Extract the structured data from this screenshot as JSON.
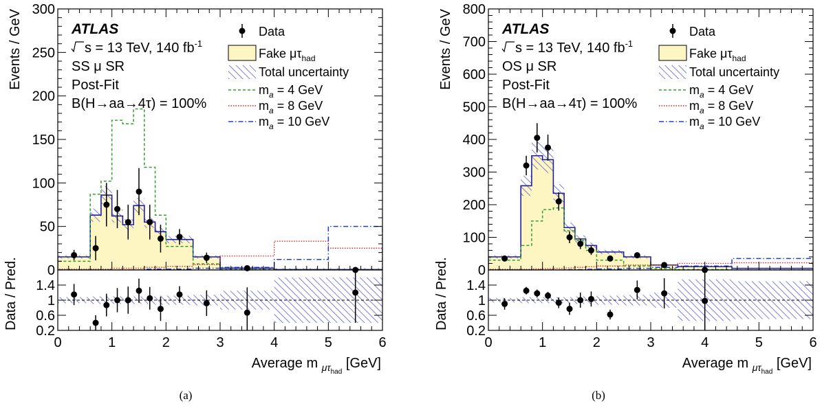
{
  "colors": {
    "fake_fill": "#fdf5c2",
    "fake_line": "#1f1f9e",
    "uncertainty": "#5b5fd6",
    "ma4": "#33a02c",
    "ma8": "#e31a1c",
    "ma10": "#1f3fdd",
    "data": "#000000"
  },
  "chart_data": [
    {
      "type": "bar",
      "caption": "(a)",
      "atlas": "ATLAS",
      "energy_pre": "s = 13 TeV, 140 fb",
      "energy_sup": "-1",
      "region": "SS μ SR",
      "fit": "Post-Fit",
      "branching": "B(H→aa→4τ) = 100%",
      "ylabel": "Events / GeV",
      "ratio_ylabel": "Data / Pred.",
      "xlabel": "Average m",
      "xlabel_sub": "μτ",
      "xlabel_subsub": "had",
      "xlabel_unit": "[GeV]",
      "xlim": [
        0,
        6
      ],
      "ylim": [
        0,
        300
      ],
      "yticks": [
        0,
        50,
        100,
        150,
        200,
        250,
        300
      ],
      "ratio_ylim": [
        0.2,
        1.8
      ],
      "ratio_yticks": [
        "0.2",
        "0.6",
        "1",
        "1.4"
      ],
      "xticks": [
        0,
        1,
        2,
        3,
        4,
        5,
        6
      ],
      "legend": {
        "data": "Data",
        "fake": "Fake μτ",
        "fake_sub": "had",
        "unc": "Total uncertainty",
        "ma4": "m",
        "ma4_sub": "a",
        "ma4_rest": "= 4 GeV",
        "ma8": "m",
        "ma8_sub": "a",
        "ma8_rest": "= 8 GeV",
        "ma10": "m",
        "ma10_sub": "a",
        "ma10_rest": "= 10 GeV"
      },
      "bin_edges": [
        0,
        0.6,
        0.8,
        1.0,
        1.2,
        1.4,
        1.6,
        1.8,
        2.0,
        2.5,
        3.0,
        4.0,
        5.0,
        6.0
      ],
      "fake": [
        15,
        63,
        86,
        62,
        52,
        74,
        55,
        44,
        35,
        15,
        2,
        0.5,
        0.5
      ],
      "ma4": [
        10,
        87,
        102,
        172,
        168,
        185,
        118,
        63,
        27,
        7,
        0.5,
        0,
        0
      ],
      "ma8": [
        1,
        1,
        1,
        2,
        2,
        2,
        3,
        3,
        4,
        6,
        16,
        33,
        25
      ],
      "ma10": [
        0,
        0,
        0,
        0,
        0,
        0,
        1,
        1,
        1,
        2,
        3,
        12,
        50
      ],
      "data": {
        "x": [
          0.3,
          0.7,
          0.9,
          1.1,
          1.3,
          1.5,
          1.7,
          1.9,
          2.25,
          2.75,
          3.5,
          5.5
        ],
        "y": [
          17,
          25,
          75,
          70,
          55,
          90,
          55,
          36,
          38,
          14,
          2,
          0
        ],
        "err": [
          6,
          14,
          25,
          22,
          20,
          27,
          20,
          16,
          9,
          6,
          2,
          2
        ]
      },
      "ratio": {
        "x": [
          0.3,
          0.7,
          0.9,
          1.1,
          1.3,
          1.5,
          1.7,
          1.9,
          2.25,
          2.75,
          3.5,
          5.5
        ],
        "y": [
          1.15,
          0.4,
          0.87,
          1.0,
          1.0,
          1.25,
          1.05,
          0.77,
          1.15,
          0.92,
          0.67,
          1.2
        ],
        "err": [
          0.28,
          0.2,
          0.3,
          0.32,
          0.36,
          0.32,
          0.3,
          0.32,
          0.22,
          0.34,
          0.67,
          0.8
        ]
      },
      "ratio_unc": [
        0.08,
        0.1,
        0.1,
        0.1,
        0.1,
        0.1,
        0.1,
        0.12,
        0.12,
        0.14,
        0.25,
        0.6,
        0.6
      ]
    },
    {
      "type": "bar",
      "caption": "(b)",
      "atlas": "ATLAS",
      "energy_pre": "s = 13 TeV, 140 fb",
      "energy_sup": "-1",
      "region": "OS μ SR",
      "fit": "Post-Fit",
      "branching": "B(H→aa→4τ) = 100%",
      "ylabel": "Events / GeV",
      "ratio_ylabel": "Data / Pred.",
      "xlabel": "Average m",
      "xlabel_sub": "μτ",
      "xlabel_subsub": "had",
      "xlabel_unit": "[GeV]",
      "xlim": [
        0,
        6
      ],
      "ylim": [
        0,
        800
      ],
      "yticks": [
        0,
        100,
        200,
        300,
        400,
        500,
        600,
        700,
        800
      ],
      "ratio_ylim": [
        0.2,
        1.8
      ],
      "ratio_yticks": [
        "0.2",
        "0.6",
        "1",
        "1.4"
      ],
      "xticks": [
        0,
        1,
        2,
        3,
        4,
        5,
        6
      ],
      "legend": {
        "data": "Data",
        "fake": "Fake μτ",
        "fake_sub": "had",
        "unc": "Total uncertainty",
        "ma4": "m",
        "ma4_sub": "a",
        "ma4_rest": "= 4 GeV",
        "ma8": "m",
        "ma8_sub": "a",
        "ma8_rest": "= 8 GeV",
        "ma10": "m",
        "ma10_sub": "a",
        "ma10_rest": "= 10 GeV"
      },
      "bin_edges": [
        0,
        0.6,
        0.8,
        1.0,
        1.2,
        1.4,
        1.6,
        1.8,
        2.0,
        2.5,
        3.0,
        3.5,
        4.5,
        6.0
      ],
      "fake": [
        40,
        258,
        350,
        338,
        235,
        130,
        95,
        75,
        55,
        40,
        15,
        10,
        5
      ],
      "ma4": [
        30,
        75,
        150,
        185,
        190,
        120,
        90,
        60,
        30,
        12,
        4,
        1,
        0
      ],
      "ma8": [
        2,
        2,
        3,
        4,
        5,
        6,
        8,
        10,
        12,
        15,
        15,
        20,
        22
      ],
      "ma10": [
        0,
        0,
        0,
        0,
        0,
        1,
        1,
        2,
        3,
        5,
        8,
        12,
        35
      ],
      "data": {
        "x": [
          0.3,
          0.7,
          0.9,
          1.1,
          1.3,
          1.5,
          1.7,
          1.9,
          2.25,
          2.75,
          3.25,
          4.0
        ],
        "y": [
          35,
          320,
          405,
          375,
          210,
          100,
          80,
          60,
          35,
          45,
          15,
          0
        ],
        "err": [
          6,
          30,
          45,
          40,
          28,
          18,
          16,
          14,
          8,
          9,
          6,
          2
        ]
      },
      "ratio": {
        "x": [
          0.3,
          0.7,
          0.9,
          1.1,
          1.3,
          1.5,
          1.7,
          1.9,
          2.25,
          2.75,
          3.25,
          4.0
        ],
        "y": [
          0.9,
          1.25,
          1.18,
          1.12,
          0.93,
          0.77,
          1.0,
          1.03,
          0.62,
          1.27,
          1.18,
          0.98
        ],
        "err": [
          0.15,
          0.1,
          0.1,
          0.1,
          0.14,
          0.16,
          0.2,
          0.2,
          0.13,
          0.25,
          0.4,
          0.98
        ]
      },
      "ratio_unc": [
        0.06,
        0.08,
        0.08,
        0.08,
        0.08,
        0.08,
        0.1,
        0.1,
        0.12,
        0.14,
        0.2,
        0.55,
        0.5
      ]
    }
  ]
}
